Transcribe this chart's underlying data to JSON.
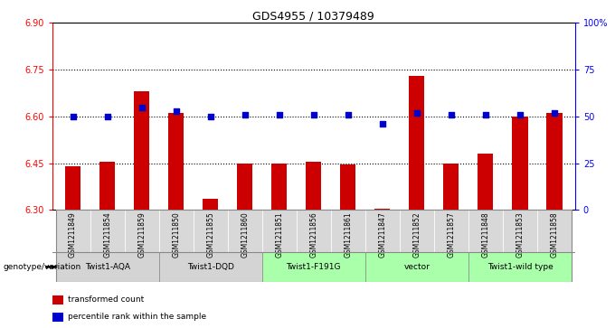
{
  "title": "GDS4955 / 10379489",
  "samples": [
    "GSM1211849",
    "GSM1211854",
    "GSM1211859",
    "GSM1211850",
    "GSM1211855",
    "GSM1211860",
    "GSM1211851",
    "GSM1211856",
    "GSM1211861",
    "GSM1211847",
    "GSM1211852",
    "GSM1211857",
    "GSM1211848",
    "GSM1211853",
    "GSM1211858"
  ],
  "bar_values": [
    6.44,
    6.455,
    6.68,
    6.61,
    6.335,
    6.45,
    6.45,
    6.455,
    6.445,
    6.305,
    6.73,
    6.45,
    6.48,
    6.6,
    6.61
  ],
  "dot_values": [
    50,
    50,
    55,
    53,
    50,
    51,
    51,
    51,
    51,
    46,
    52,
    51,
    51,
    51,
    52
  ],
  "ylim_left": [
    6.3,
    6.9
  ],
  "ylim_right": [
    0,
    100
  ],
  "yticks_left": [
    6.3,
    6.45,
    6.6,
    6.75,
    6.9
  ],
  "yticks_right": [
    0,
    25,
    50,
    75,
    100
  ],
  "ytick_right_labels": [
    "0",
    "25",
    "50",
    "75",
    "100%"
  ],
  "hlines": [
    6.45,
    6.6,
    6.75
  ],
  "groups": [
    {
      "label": "Twist1-AQA",
      "start": 0,
      "end": 3,
      "color": "#aaffaa"
    },
    {
      "label": "Twist1-DQD",
      "start": 3,
      "end": 6,
      "color": "#aaffaa"
    },
    {
      "label": "Twist1-F191G",
      "start": 6,
      "end": 9,
      "color": "#aaffaa"
    },
    {
      "label": "vector",
      "start": 9,
      "end": 12,
      "color": "#aaffaa"
    },
    {
      "label": "Twist1-wild type",
      "start": 12,
      "end": 15,
      "color": "#aaffaa"
    }
  ],
  "sample_cell_color": "#d8d8d8",
  "bar_color": "#cc0000",
  "dot_color": "#0000cc",
  "bar_width": 0.45,
  "legend_items": [
    {
      "color": "#cc0000",
      "label": "transformed count"
    },
    {
      "color": "#0000cc",
      "label": "percentile rank within the sample"
    }
  ],
  "genotype_label": "genotype/variation",
  "bar_base": 6.3
}
